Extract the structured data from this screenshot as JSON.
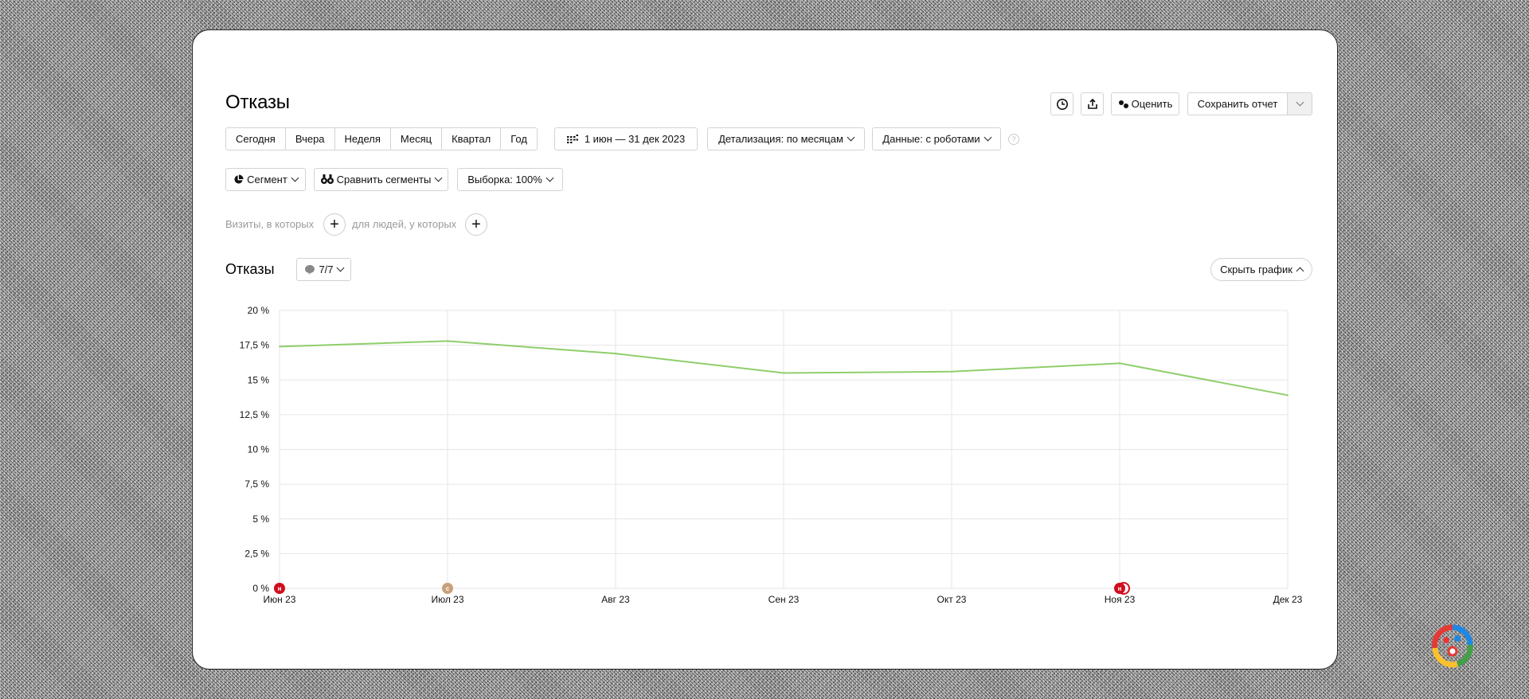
{
  "page": {
    "title": "Отказы"
  },
  "toolbar": {
    "rate_label": "Оценить",
    "save_label": "Сохранить отчет"
  },
  "periods": [
    "Сегодня",
    "Вчера",
    "Неделя",
    "Месяц",
    "Квартал",
    "Год"
  ],
  "date_range": "1 июн — 31 дек 2023",
  "detail_label": "Детализация: по месяцам",
  "data_label": "Данные: с роботами",
  "help_label": "?",
  "segment_label": "Сегмент",
  "compare_label": "Сравнить сегменты",
  "sample_label": "Выборка: 100%",
  "filter": {
    "visits_label": "Визиты, в которых",
    "people_label": "для людей, у которых"
  },
  "chart_section": {
    "title": "Отказы",
    "series_count": "7/7",
    "hide_label": "Скрыть график"
  },
  "colors": {
    "line": "#8fce6b",
    "grid": "#e6e6e6",
    "marker_red": "#d10d1e",
    "marker_tan": "#c8a07a"
  },
  "chart_data": {
    "type": "line",
    "categories": [
      "Июн 23",
      "Июл 23",
      "Авг 23",
      "Сен 23",
      "Окт 23",
      "Ноя 23",
      "Дек 23"
    ],
    "values": [
      17.4,
      17.8,
      16.9,
      15.5,
      15.6,
      16.2,
      13.9
    ],
    "yticks": [
      "0 %",
      "2,5 %",
      "5 %",
      "7,5 %",
      "10 %",
      "12,5 %",
      "15 %",
      "17,5 %",
      "20 %"
    ],
    "ylim": [
      0,
      20
    ],
    "grid": true,
    "markers": [
      {
        "category": "Июн 23",
        "label": "н",
        "color": "#d10d1e"
      },
      {
        "category": "Июл 23",
        "label": "с",
        "color": "#c8a07a"
      },
      {
        "category": "Ноя 23",
        "label": "н",
        "color": "#d10d1e"
      }
    ]
  }
}
